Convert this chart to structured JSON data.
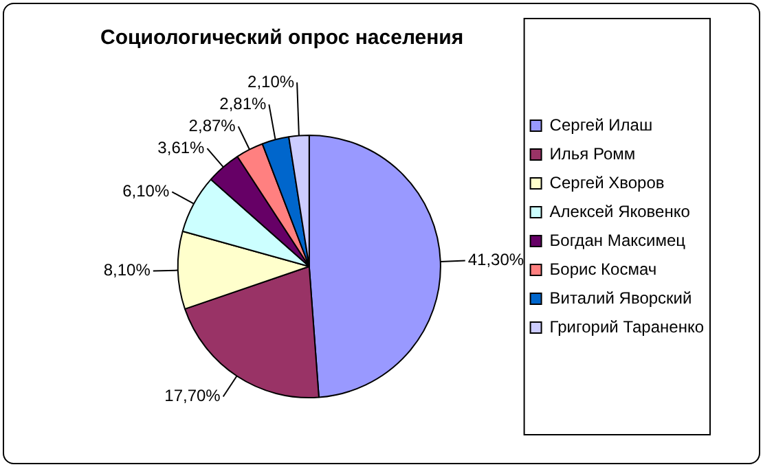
{
  "chart_data": {
    "type": "pie",
    "title": "Социологический опрос населения",
    "categories": [
      "Сергей Илаш",
      "Илья Ромм",
      "Сергей Хворов",
      "Алексей Яковенко",
      "Богдан Максимец",
      "Борис Космач",
      "Виталий Яворский",
      "Григорий Тараненко"
    ],
    "values": [
      41.3,
      17.7,
      8.1,
      6.1,
      3.61,
      2.87,
      2.81,
      2.1
    ],
    "value_labels": [
      "41,30%",
      "17,70%",
      "8,10%",
      "6,10%",
      "3,61%",
      "2,87%",
      "2,81%",
      "2,10%"
    ],
    "colors": [
      "#9999ff",
      "#993366",
      "#ffffcc",
      "#ccffff",
      "#660066",
      "#ff8080",
      "#0066cc",
      "#ccccff"
    ],
    "legend": "right"
  }
}
